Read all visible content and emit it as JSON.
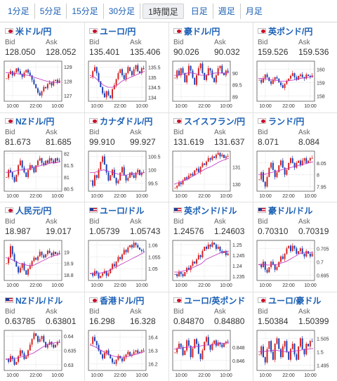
{
  "tabs": [
    {
      "label": "1分足",
      "active": false
    },
    {
      "label": "5分足",
      "active": false
    },
    {
      "label": "15分足",
      "active": false
    },
    {
      "label": "30分足",
      "active": false
    },
    {
      "label": "1時間足",
      "active": true
    },
    {
      "label": "日足",
      "active": false
    },
    {
      "label": "週足",
      "active": false
    },
    {
      "label": "月足",
      "active": false
    }
  ],
  "labels": {
    "bid": "Bid",
    "ask": "Ask"
  },
  "cards": [
    {
      "name": "米ドル/円",
      "flag": "jp",
      "bid": "128.050",
      "ask": "128.052"
    },
    {
      "name": "ユーロ/円",
      "flag": "jp",
      "bid": "135.401",
      "ask": "135.406"
    },
    {
      "name": "豪ドル/円",
      "flag": "jp",
      "bid": "90.026",
      "ask": "90.032"
    },
    {
      "name": "英ポンド/円",
      "flag": "jp",
      "bid": "159.526",
      "ask": "159.536"
    },
    {
      "name": "NZドル/円",
      "flag": "jp",
      "bid": "81.673",
      "ask": "81.685"
    },
    {
      "name": "カナダドル/円",
      "flag": "jp",
      "bid": "99.910",
      "ask": "99.927"
    },
    {
      "name": "スイスフラン/円",
      "flag": "jp",
      "bid": "131.619",
      "ask": "131.637"
    },
    {
      "name": "ランド/円",
      "flag": "jp",
      "bid": "8.071",
      "ask": "8.084"
    },
    {
      "name": "人民元/円",
      "flag": "jp",
      "bid": "18.987",
      "ask": "19.017"
    },
    {
      "name": "ユーロ/ドル",
      "flag": "us",
      "bid": "1.05739",
      "ask": "1.05743"
    },
    {
      "name": "英ポンド/ドル",
      "flag": "us",
      "bid": "1.24576",
      "ask": "1.24603"
    },
    {
      "name": "豪ドル/ドル",
      "flag": "us",
      "bid": "0.70310",
      "ask": "0.70319"
    },
    {
      "name": "NZドル/ドル",
      "flag": "us",
      "bid": "0.63785",
      "ask": "0.63801"
    },
    {
      "name": "香港ドル/円",
      "flag": "jp",
      "bid": "16.298",
      "ask": "16.328"
    },
    {
      "name": "ユーロ/英ポンド",
      "flag": "jp",
      "bid": "0.84870",
      "ask": "0.84880"
    },
    {
      "name": "ユーロ/豪ドル",
      "flag": "jp",
      "bid": "1.50384",
      "ask": "1.50399"
    }
  ],
  "chart_data": [
    {
      "type": "candlestick",
      "yticks": [
        "129",
        "128",
        "127"
      ],
      "xticks": [
        "10:00",
        "22:00",
        "10:00"
      ],
      "ylim": [
        126.6,
        129.4
      ],
      "closes": [
        128.2,
        128.5,
        128.7,
        128.4,
        128.6,
        128.9,
        128.7,
        128.5,
        128.3,
        128.6,
        128.8,
        128.6,
        128.4,
        128.1,
        127.8,
        127.5,
        127.2,
        127.0,
        127.3,
        127.6,
        127.5,
        127.8,
        127.9,
        127.7,
        128.0,
        128.1,
        127.9,
        128.05
      ],
      "ma": [
        128.6,
        128.6,
        128.55,
        128.5,
        128.45,
        128.4,
        128.3,
        128.2,
        128.1,
        128.0,
        127.95,
        127.9,
        127.9
      ]
    },
    {
      "type": "candlestick",
      "yticks": [
        "135.5",
        "135",
        "134.5",
        "134"
      ],
      "xticks": [
        "10:00",
        "22:00",
        "10:00"
      ],
      "ylim": [
        133.8,
        135.8
      ],
      "closes": [
        135.0,
        135.3,
        135.5,
        135.2,
        134.8,
        134.5,
        134.2,
        134.0,
        134.3,
        134.1,
        133.95,
        134.4,
        134.6,
        134.9,
        135.2,
        135.4,
        135.1,
        134.9,
        135.2,
        135.5,
        135.3,
        135.1,
        135.4,
        135.6,
        135.3,
        135.2,
        135.45,
        135.4
      ],
      "ma": [
        135.1,
        135.0,
        134.8,
        134.6,
        134.5,
        134.5,
        134.6,
        134.8,
        134.9,
        135.0,
        135.1,
        135.2,
        135.3
      ]
    },
    {
      "type": "candlestick",
      "yticks": [
        "90",
        "89.5",
        "89"
      ],
      "xticks": [
        "10:00",
        "22:00",
        "10:00"
      ],
      "ylim": [
        88.8,
        90.5
      ],
      "closes": [
        89.8,
        90.1,
        89.9,
        90.2,
        90.0,
        89.6,
        89.9,
        90.3,
        90.1,
        89.8,
        89.5,
        89.9,
        90.2,
        90.4,
        90.0,
        89.7,
        89.9,
        90.2,
        90.1,
        89.8,
        89.6,
        89.9,
        90.2,
        90.3,
        90.0,
        89.9,
        90.1,
        90.03
      ],
      "ma": [
        89.9,
        89.9,
        89.95,
        90.0,
        90.0,
        89.95,
        89.9,
        89.9,
        89.95,
        90.0,
        90.0,
        90.0,
        90.0
      ]
    },
    {
      "type": "candlestick",
      "yticks": [
        "160",
        "159",
        "158"
      ],
      "xticks": [
        "10:00",
        "22:00",
        "10:00"
      ],
      "ylim": [
        157.6,
        160.6
      ],
      "closes": [
        159.2,
        159.0,
        159.3,
        159.6,
        159.4,
        159.1,
        158.9,
        159.2,
        159.4,
        159.3,
        159.0,
        158.8,
        158.6,
        158.9,
        159.1,
        159.3,
        159.5,
        159.7,
        159.4,
        159.2,
        159.5,
        159.6,
        159.4,
        159.3,
        159.6,
        159.5,
        159.4,
        159.53
      ],
      "ma": [
        159.3,
        159.3,
        159.25,
        159.2,
        159.15,
        159.1,
        159.1,
        159.15,
        159.2,
        159.3,
        159.35,
        159.4,
        159.45
      ]
    },
    {
      "type": "candlestick",
      "yticks": [
        "82",
        "81.5",
        "81",
        "80.5"
      ],
      "xticks": [
        "10:00",
        "22:00",
        "10:00"
      ],
      "ylim": [
        80.4,
        82.1
      ],
      "closes": [
        81.0,
        81.3,
        81.2,
        81.0,
        80.8,
        81.1,
        81.5,
        81.7,
        81.4,
        81.2,
        81.0,
        81.3,
        81.5,
        81.4,
        81.2,
        81.5,
        81.7,
        81.8,
        81.6,
        81.5,
        81.7,
        81.6,
        81.8,
        81.7,
        81.6,
        81.8,
        81.7,
        81.67
      ],
      "ma": [
        81.2,
        81.2,
        81.25,
        81.3,
        81.3,
        81.35,
        81.4,
        81.45,
        81.5,
        81.55,
        81.6,
        81.6,
        81.65
      ]
    },
    {
      "type": "candlestick",
      "yticks": [
        "100.5",
        "100",
        "99.5"
      ],
      "xticks": [
        "10:00",
        "22:00",
        "10:00"
      ],
      "ylim": [
        99.2,
        100.7
      ],
      "closes": [
        99.6,
        99.4,
        99.8,
        99.7,
        100.0,
        100.3,
        100.5,
        100.2,
        99.9,
        99.6,
        99.8,
        100.0,
        99.7,
        99.5,
        99.6,
        99.9,
        100.1,
        99.8,
        99.6,
        99.7,
        99.9,
        99.8,
        99.7,
        99.9,
        100.0,
        99.8,
        99.9,
        99.91
      ],
      "ma": [
        99.9,
        99.9,
        99.95,
        100.0,
        99.95,
        99.9,
        99.85,
        99.8,
        99.8,
        99.85,
        99.85,
        99.85,
        99.9
      ]
    },
    {
      "type": "candlestick",
      "yticks": [
        "131",
        "130"
      ],
      "xticks": [
        "10:00",
        "22:00",
        "10:00"
      ],
      "ylim": [
        129.6,
        131.9
      ],
      "closes": [
        129.8,
        129.9,
        130.1,
        130.0,
        130.2,
        130.4,
        130.3,
        130.5,
        130.6,
        130.5,
        130.8,
        130.9,
        130.7,
        131.0,
        131.2,
        131.1,
        131.3,
        131.5,
        131.4,
        131.6,
        131.5,
        131.7,
        131.8,
        131.6,
        131.7,
        131.5,
        131.6,
        131.62
      ],
      "ma": [
        130.0,
        130.1,
        130.2,
        130.3,
        130.45,
        130.6,
        130.75,
        130.9,
        131.0,
        131.15,
        131.3,
        131.4,
        131.5
      ]
    },
    {
      "type": "candlestick",
      "yticks": [
        "8.05",
        "8",
        "7.95"
      ],
      "xticks": [
        "10:00",
        "22:00",
        "10:00"
      ],
      "ylim": [
        7.93,
        8.1
      ],
      "closes": [
        7.98,
        8.01,
        7.97,
        7.95,
        7.99,
        8.03,
        8.05,
        8.02,
        7.99,
        8.01,
        8.04,
        8.06,
        8.03,
        8.0,
        8.02,
        8.05,
        8.07,
        8.05,
        8.03,
        8.05,
        8.06,
        8.04,
        8.06,
        8.07,
        8.05,
        8.06,
        8.07,
        8.071
      ],
      "ma": [
        8.0,
        8.0,
        8.005,
        8.01,
        8.015,
        8.02,
        8.025,
        8.03,
        8.035,
        8.04,
        8.045,
        8.05,
        8.055
      ]
    },
    {
      "type": "candlestick",
      "yticks": [
        "19",
        "18.9",
        "18.8"
      ],
      "xticks": [
        "10:00",
        "22:00",
        "10:00"
      ],
      "ylim": [
        18.75,
        19.1
      ],
      "closes": [
        18.9,
        18.95,
        19.05,
        18.98,
        18.92,
        18.87,
        18.82,
        18.86,
        18.9,
        18.84,
        18.8,
        18.85,
        18.88,
        18.92,
        18.95,
        18.93,
        18.96,
        19.0,
        18.97,
        18.95,
        18.98,
        19.01,
        18.99,
        18.97,
        19.0,
        18.98,
        18.99,
        18.987
      ],
      "ma": [
        18.95,
        18.94,
        18.92,
        18.9,
        18.89,
        18.88,
        18.88,
        18.9,
        18.92,
        18.94,
        18.96,
        18.97,
        18.98
      ]
    },
    {
      "type": "candlestick",
      "yticks": [
        "1.06",
        "1.055",
        "1.05"
      ],
      "xticks": [
        "10:00",
        "22:00",
        "10:00"
      ],
      "ylim": [
        1.045,
        1.062
      ],
      "closes": [
        1.048,
        1.047,
        1.049,
        1.048,
        1.046,
        1.047,
        1.048,
        1.049,
        1.047,
        1.048,
        1.05,
        1.052,
        1.051,
        1.053,
        1.055,
        1.054,
        1.056,
        1.058,
        1.057,
        1.059,
        1.06,
        1.059,
        1.061,
        1.06,
        1.059,
        1.058,
        1.0575,
        1.0574
      ],
      "ma": [
        1.048,
        1.048,
        1.048,
        1.0485,
        1.049,
        1.05,
        1.051,
        1.052,
        1.053,
        1.054,
        1.055,
        1.056,
        1.057
      ]
    },
    {
      "type": "candlestick",
      "yticks": [
        "1.25",
        "1.245",
        "1.24",
        "1.235"
      ],
      "xticks": [
        "10:00",
        "22:00",
        "10:00"
      ],
      "ylim": [
        1.233,
        1.252
      ],
      "closes": [
        1.236,
        1.235,
        1.237,
        1.236,
        1.235,
        1.237,
        1.239,
        1.238,
        1.24,
        1.242,
        1.241,
        1.243,
        1.245,
        1.244,
        1.247,
        1.249,
        1.248,
        1.25,
        1.249,
        1.251,
        1.25,
        1.248,
        1.249,
        1.247,
        1.246,
        1.247,
        1.245,
        1.2458
      ],
      "ma": [
        1.237,
        1.237,
        1.2375,
        1.238,
        1.239,
        1.24,
        1.241,
        1.243,
        1.244,
        1.245,
        1.246,
        1.2465,
        1.247
      ]
    },
    {
      "type": "candlestick",
      "yticks": [
        "0.705",
        "0.7",
        "0.695"
      ],
      "xticks": [
        "10:00",
        "22:00",
        "10:00"
      ],
      "ylim": [
        0.693,
        0.708
      ],
      "closes": [
        0.699,
        0.698,
        0.7,
        0.697,
        0.696,
        0.698,
        0.7,
        0.699,
        0.697,
        0.698,
        0.7,
        0.702,
        0.701,
        0.703,
        0.705,
        0.706,
        0.704,
        0.706,
        0.705,
        0.703,
        0.704,
        0.705,
        0.703,
        0.702,
        0.704,
        0.703,
        0.702,
        0.7031
      ],
      "ma": [
        0.699,
        0.699,
        0.6988,
        0.6988,
        0.699,
        0.6995,
        0.7,
        0.701,
        0.702,
        0.703,
        0.7035,
        0.7035,
        0.7035
      ]
    },
    {
      "type": "candlestick",
      "yticks": [
        "0.64",
        "0.635",
        "0.63"
      ],
      "xticks": [
        "10:00",
        "22:00",
        "10:00"
      ],
      "ylim": [
        0.628,
        0.642
      ],
      "closes": [
        0.632,
        0.631,
        0.633,
        0.632,
        0.63,
        0.631,
        0.633,
        0.635,
        0.634,
        0.632,
        0.633,
        0.635,
        0.637,
        0.639,
        0.641,
        0.64,
        0.638,
        0.639,
        0.64,
        0.638,
        0.636,
        0.637,
        0.638,
        0.637,
        0.636,
        0.637,
        0.638,
        0.6379
      ],
      "ma": [
        0.632,
        0.632,
        0.6322,
        0.6325,
        0.633,
        0.6335,
        0.634,
        0.635,
        0.636,
        0.637,
        0.6375,
        0.6377,
        0.6378
      ]
    },
    {
      "type": "candlestick",
      "yticks": [
        "16.4",
        "16.3",
        "16.2"
      ],
      "xticks": [
        "10:00",
        "22:00",
        "10:00"
      ],
      "ylim": [
        16.15,
        16.45
      ],
      "closes": [
        16.35,
        16.4,
        16.37,
        16.34,
        16.3,
        16.27,
        16.24,
        16.28,
        16.3,
        16.27,
        16.24,
        16.21,
        16.2,
        16.23,
        16.26,
        16.24,
        16.22,
        16.25,
        16.27,
        16.29,
        16.26,
        16.27,
        16.29,
        16.3,
        16.28,
        16.29,
        16.3,
        16.298
      ],
      "ma": [
        16.34,
        16.33,
        16.31,
        16.29,
        16.27,
        16.26,
        16.25,
        16.25,
        16.25,
        16.26,
        16.27,
        16.28,
        16.29
      ]
    },
    {
      "type": "candlestick",
      "yticks": [
        "0.848",
        "0.846"
      ],
      "xticks": [
        "10:00",
        "22:00",
        "10:00"
      ],
      "ylim": [
        0.8445,
        0.8505
      ],
      "closes": [
        0.8472,
        0.8478,
        0.8485,
        0.848,
        0.8468,
        0.8475,
        0.849,
        0.8482,
        0.8465,
        0.8478,
        0.8492,
        0.8485,
        0.847,
        0.8462,
        0.8475,
        0.8488,
        0.8495,
        0.8483,
        0.8476,
        0.8485,
        0.849,
        0.8482,
        0.8487,
        0.8484,
        0.848,
        0.8486,
        0.8488,
        0.8487
      ],
      "ma": [
        0.8477,
        0.8478,
        0.8479,
        0.848,
        0.848,
        0.8481,
        0.8482,
        0.8483,
        0.8483,
        0.8484,
        0.8485,
        0.8486,
        0.8486
      ]
    },
    {
      "type": "candlestick",
      "yticks": [
        "1.505",
        "1.5",
        "1.495"
      ],
      "xticks": [
        "10:00",
        "22:00",
        "10:00"
      ],
      "ylim": [
        1.493,
        1.508
      ],
      "closes": [
        1.499,
        1.502,
        1.498,
        1.496,
        1.501,
        1.504,
        1.5,
        1.497,
        1.503,
        1.505,
        1.501,
        1.498,
        1.502,
        1.504,
        1.5,
        1.497,
        1.501,
        1.503,
        1.499,
        1.497,
        1.502,
        1.505,
        1.501,
        1.499,
        1.503,
        1.502,
        1.504,
        1.5038
      ],
      "ma": [
        1.5,
        1.5,
        1.5003,
        1.5005,
        1.5005,
        1.5003,
        1.5,
        1.5,
        1.5003,
        1.5005,
        1.5008,
        1.501,
        1.5012
      ]
    }
  ]
}
